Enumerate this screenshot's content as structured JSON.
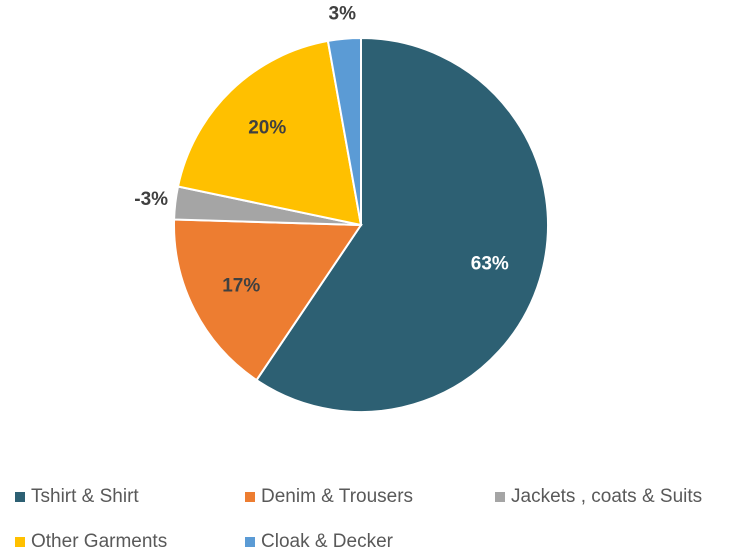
{
  "chart_data": {
    "type": "pie",
    "categories": [
      "Tshirt & Shirt",
      "Denim & Trousers",
      "Jackets , coats & Suits",
      "Other Garments",
      "Cloak & Decker"
    ],
    "values": [
      63,
      17,
      -3,
      20,
      3
    ],
    "value_labels": [
      "63%",
      "17%",
      "-3%",
      "20%",
      "3%"
    ],
    "colors": [
      "#2d6073",
      "#ed7d31",
      "#a5a5a5",
      "#ffc000",
      "#5b9bd5"
    ],
    "legend": "bottom"
  }
}
